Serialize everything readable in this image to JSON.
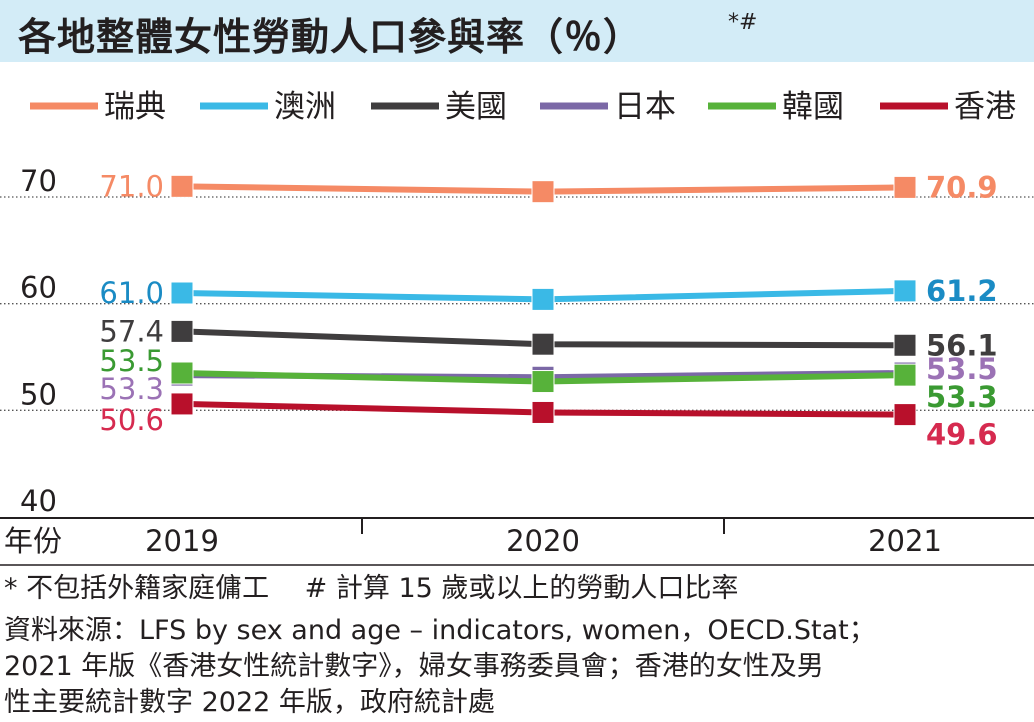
{
  "title": "各地整體女性勞動人口參與率（％）",
  "title_mark": "*#",
  "footnote": "* 不包括外籍家庭傭工　 # 計算 15 歲或以上的勞動人口比率",
  "source_lines": [
    "資料來源：LFS by sex and age – indicators, women，OECD.Stat；",
    "2021 年版《香港女性統計數字》，婦女事務委員會；香港的女性及男",
    "性主要統計數字 2022 年版，政府統計處"
  ],
  "chart_data": {
    "type": "line",
    "x": [
      "2019",
      "2020",
      "2021"
    ],
    "xlabel": "年份",
    "ylabel": "",
    "ylim": [
      40,
      72
    ],
    "yticks": [
      40,
      50,
      60,
      70
    ],
    "legend": "top",
    "series": [
      {
        "name": "瑞典",
        "color": "#f58a65",
        "values": [
          71.0,
          70.5,
          70.9
        ],
        "start_label": "71.0",
        "end_label": "70.9"
      },
      {
        "name": "澳洲",
        "color": "#3ab9e6",
        "values": [
          61.0,
          60.4,
          61.2
        ],
        "start_label": "61.0",
        "end_label": "61.2",
        "start_label_color": "#1a8bc4",
        "end_label_color": "#1a8bc4"
      },
      {
        "name": "美國",
        "color": "#3f3d3e",
        "values": [
          57.4,
          56.2,
          56.1
        ],
        "start_label": "57.4",
        "end_label": "56.1"
      },
      {
        "name": "日本",
        "color": "#7b68a6",
        "values": [
          53.3,
          53.1,
          53.5
        ],
        "start_label": "53.3",
        "end_label": "53.5",
        "start_label_color": "#9b72b5",
        "end_label_color": "#9b72b5"
      },
      {
        "name": "韓國",
        "color": "#57b23a",
        "values": [
          53.5,
          52.7,
          53.3
        ],
        "start_label": "53.5",
        "end_label": "53.3",
        "start_label_color": "#3a9a32",
        "end_label_color": "#3a9a32"
      },
      {
        "name": "香港",
        "color": "#b8102b",
        "values": [
          50.6,
          49.8,
          49.6
        ],
        "start_label": "50.6",
        "end_label": "49.6",
        "start_label_color": "#d62a4f",
        "end_label_color": "#d62a4f"
      }
    ]
  }
}
